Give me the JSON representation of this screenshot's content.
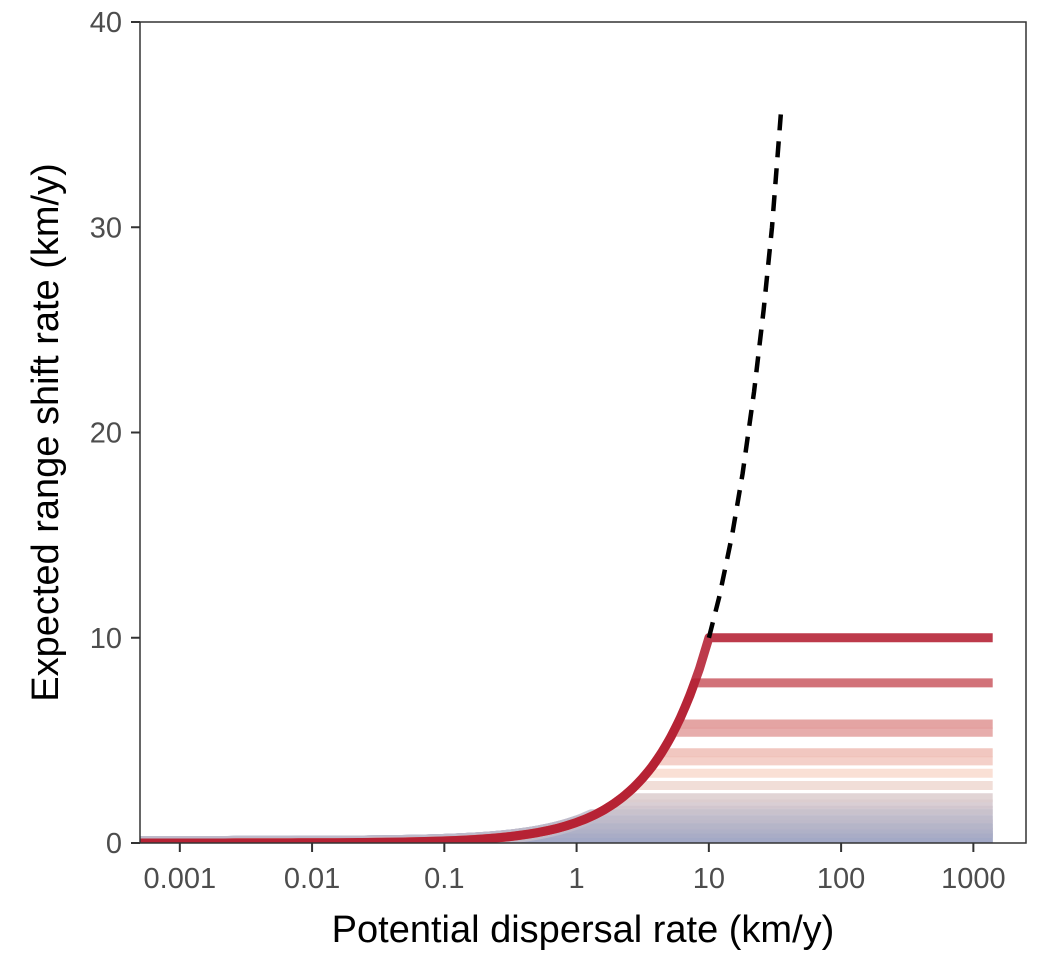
{
  "chart_data": {
    "type": "line",
    "title": "",
    "xlabel": "Potential dispersal rate (km/y)",
    "ylabel": "Expected range shift rate (km/y)",
    "x_scale": "log10",
    "xlim": [
      0.0005,
      2500
    ],
    "ylim": [
      0,
      40
    ],
    "x_ticks": [
      0.001,
      0.01,
      0.1,
      1,
      10,
      100,
      1000
    ],
    "x_tick_labels": [
      "0.001",
      "0.01",
      "0.1",
      "1",
      "10",
      "100",
      "1000"
    ],
    "y_ticks": [
      0,
      10,
      20,
      30,
      40
    ],
    "y_tick_labels": [
      "0",
      "10",
      "20",
      "30",
      "40"
    ],
    "grid": false,
    "legend": "none",
    "reference_curve": {
      "style": "dashed",
      "color": "#000000",
      "x": [
        10,
        12,
        15,
        18,
        22,
        26,
        30,
        35
      ],
      "y": [
        10,
        12,
        15,
        18,
        22,
        26,
        30,
        35.5
      ]
    },
    "plateau_series": {
      "x_max": 1400,
      "levels": [
        10,
        7.8,
        5.8,
        5.4,
        4.4,
        4.0,
        3.4,
        2.8,
        2.2,
        1.9,
        1.6,
        1.3,
        1.0,
        0.8,
        0.6,
        0.4,
        0.25,
        0.15
      ],
      "x_min": 0.0005,
      "color_high": "#b2182b",
      "color_mid": "#fbe0d3",
      "color_low": "#9aa3c4"
    }
  }
}
